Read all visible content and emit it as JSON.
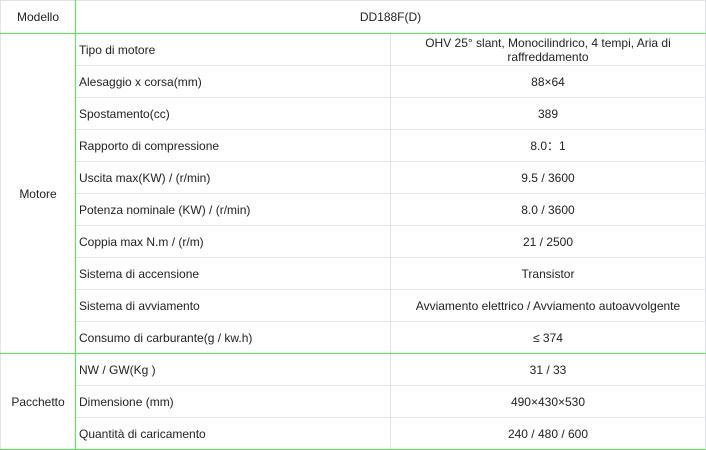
{
  "header": {
    "label": "Modello",
    "value": "DD188F(D)"
  },
  "groups": [
    {
      "name": "Motore",
      "rows": [
        {
          "label": "Tipo di motore",
          "value": "OHV 25° slant, Monocilindrico, 4 tempi, Aria di raffreddamento"
        },
        {
          "label": "Alesaggio x corsa(mm)",
          "value": "88×64"
        },
        {
          "label": "Spostamento(cc)",
          "value": "389"
        },
        {
          "label": "Rapporto di compressione",
          "value": "8.0：1"
        },
        {
          "label": "Uscita max(KW) / (r/min)",
          "value": "9.5 / 3600"
        },
        {
          "label": "Potenza nominale (KW) / (r/min)",
          "value": "8.0 / 3600"
        },
        {
          "label": "Coppia max N.m / (r/m)",
          "value": "21 / 2500"
        },
        {
          "label": "Sistema di accensione",
          "value": "Transistor"
        },
        {
          "label": "Sistema di avviamento",
          "value": "Avviamento elettrico / Avviamento autoavvolgente"
        },
        {
          "label": "Consumo di carburante(g / kw.h)",
          "value": "≤ 374"
        }
      ]
    },
    {
      "name": "Pacchetto",
      "rows": [
        {
          "label": "NW / GW(Kg )",
          "value": "31 / 33"
        },
        {
          "label": "Dimensione (mm)",
          "value": "490×430×530"
        },
        {
          "label": "Quantità di caricamento",
          "value": "240 / 480 / 600"
        }
      ]
    }
  ]
}
